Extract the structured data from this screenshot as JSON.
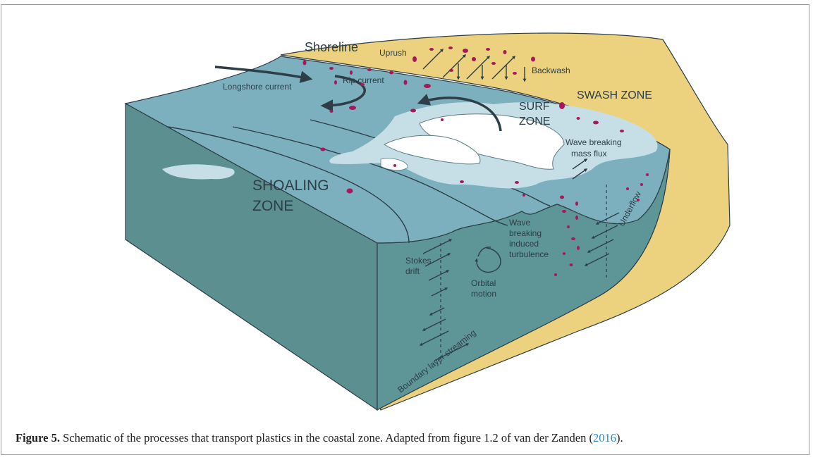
{
  "diagram": {
    "labels": {
      "shoreline": "Shoreline",
      "uprush": "Uprush",
      "backwash": "Backwash",
      "swash_zone": "SWASH ZONE",
      "longshore_current": "Longshore current",
      "rip_current": "Rip current",
      "surf_zone_1": "SURF",
      "surf_zone_2": "ZONE",
      "wave_breaking_flux_1": "Wave breaking",
      "wave_breaking_flux_2": "mass flux",
      "shoaling_zone_1": "SHOALING",
      "shoaling_zone_2": "ZONE",
      "wave_turb_1": "Wave",
      "wave_turb_2": "breaking",
      "wave_turb_3": "induced",
      "wave_turb_4": "turbulence",
      "underflow": "Underflow",
      "stokes_1": "Stokes",
      "stokes_2": "drift",
      "orbital_1": "Orbital",
      "orbital_2": "motion",
      "boundary_layer": "Boundary layer streaming"
    },
    "colors": {
      "sand": "#ecd27e",
      "sea_top": "#7cb0be",
      "sea_side": "#5c8f90",
      "foam": "#c6dfe7",
      "plastic": "#a8175c",
      "arrow": "#2d3e46"
    }
  },
  "caption": {
    "figure_label": "Figure 5.",
    "text": " Schematic of the processes that transport plastics in the coastal zone. Adapted from figure 1.2 of van der Zanden (",
    "year_link": "2016",
    "end": ")."
  }
}
